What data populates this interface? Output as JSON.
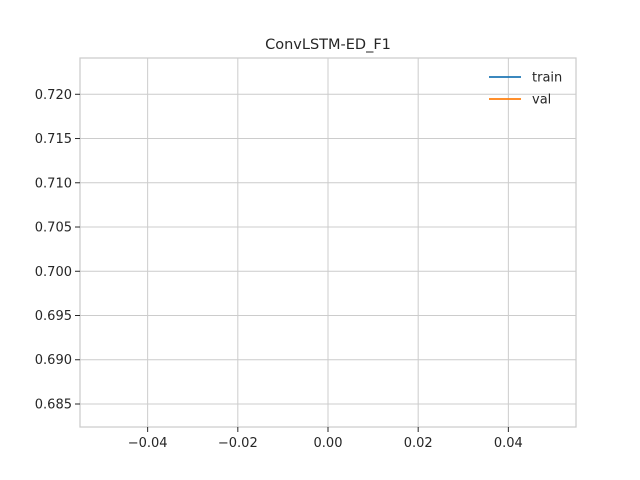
{
  "chart_data": {
    "type": "line",
    "title": "ConvLSTM-ED_F1",
    "xlabel": "",
    "ylabel": "",
    "xlim": [
      -0.055,
      0.055
    ],
    "ylim": [
      0.6824,
      0.7241
    ],
    "x_ticks": [
      -0.04,
      -0.02,
      0.0,
      0.02,
      0.04
    ],
    "x_tick_labels": [
      "−0.04",
      "−0.02",
      "0.00",
      "0.02",
      "0.04"
    ],
    "y_ticks": [
      0.685,
      0.69,
      0.695,
      0.7,
      0.705,
      0.71,
      0.715,
      0.72
    ],
    "y_tick_labels": [
      "0.685",
      "0.690",
      "0.695",
      "0.700",
      "0.705",
      "0.710",
      "0.715",
      "0.720"
    ],
    "grid": true,
    "legend_position": "top-right",
    "series": [
      {
        "name": "train",
        "color": "#1f77b4",
        "x": [],
        "y": []
      },
      {
        "name": "val",
        "color": "#ff7f0e",
        "x": [],
        "y": []
      }
    ]
  }
}
